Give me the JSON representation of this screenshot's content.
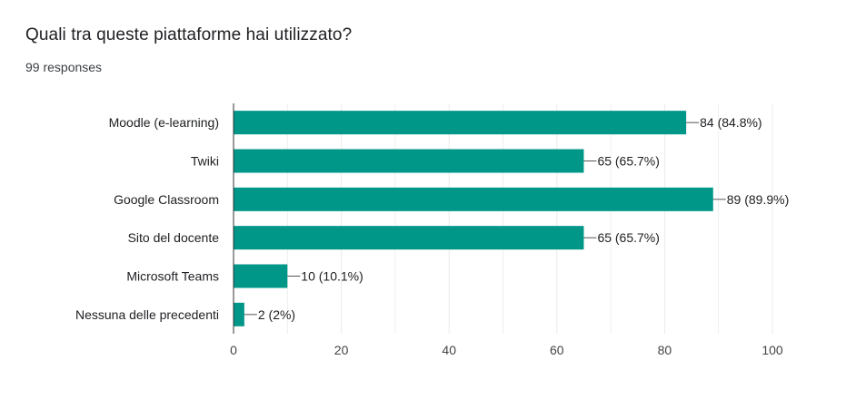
{
  "question": {
    "title": "Quali tra queste piattaforme hai utilizzato?",
    "responses": "99 responses"
  },
  "colors": {
    "bar": "#009688",
    "grid": "#ebebeb",
    "axis": "#333333",
    "leader": "#555555"
  },
  "chart_data": {
    "type": "bar",
    "orientation": "horizontal",
    "categories": [
      "Moodle (e-learning)",
      "Twiki",
      "Google Classroom",
      "Sito del docente",
      "Microsoft Teams",
      "Nessuna delle precedenti"
    ],
    "values": [
      84,
      65,
      89,
      65,
      10,
      2
    ],
    "data_labels": [
      "84 (84.8%)",
      "65 (65.7%)",
      "89 (89.9%)",
      "65 (65.7%)",
      "10 (10.1%)",
      "2 (2%)"
    ],
    "xlim": [
      0,
      100
    ],
    "xticks": [
      0,
      20,
      40,
      60,
      80,
      100
    ],
    "xtick_labels": [
      "0",
      "20",
      "40",
      "60",
      "80",
      "100"
    ],
    "grid": true,
    "legend": "none"
  }
}
